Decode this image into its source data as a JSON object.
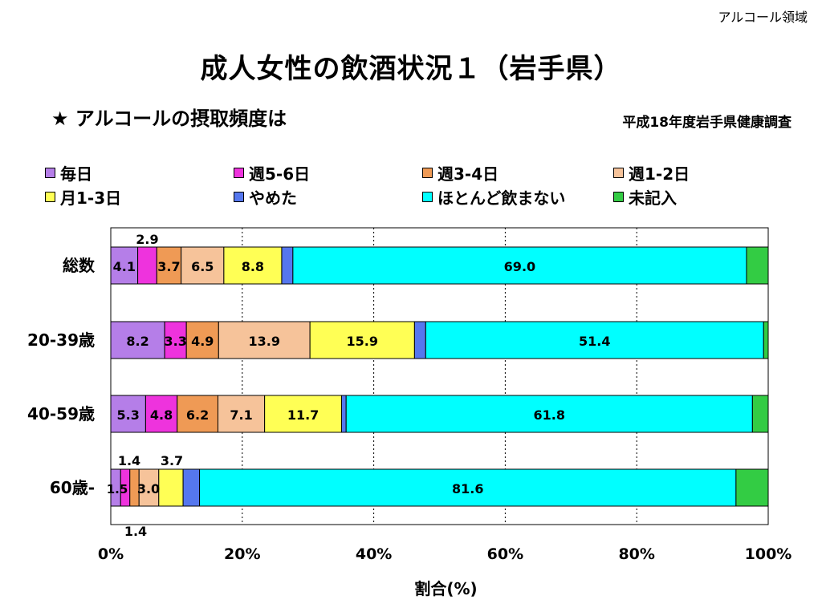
{
  "header": {
    "corner_label": "アルコール領域",
    "title": "成人女性の飲酒状況１（岩手県）",
    "subtitle": "★ アルコールの摂取頻度は",
    "source": "平成18年度岩手県健康調査"
  },
  "chart_data": {
    "type": "bar",
    "orientation": "horizontal",
    "stacked": true,
    "percent": true,
    "xlabel": "割合(%)",
    "xlim": [
      0,
      100
    ],
    "x_ticks": [
      "0%",
      "20%",
      "40%",
      "60%",
      "80%",
      "100%"
    ],
    "grid": "vertical dotted",
    "legend_position": "top",
    "categories": [
      "総数",
      "20-39歳",
      "40-59歳",
      "60歳-"
    ],
    "series": [
      {
        "name": "毎日",
        "color": "#b57ee8",
        "values": [
          4.1,
          8.2,
          5.3,
          1.5
        ],
        "labels": [
          "4.1",
          "8.2",
          "5.3",
          "1.5"
        ]
      },
      {
        "name": "週5-6日",
        "color": "#ee33dd",
        "values": [
          2.9,
          3.3,
          4.8,
          1.4
        ],
        "labels": [
          "2.9",
          "3.3",
          "4.8",
          "1.4"
        ]
      },
      {
        "name": "週3-4日",
        "color": "#ef9a55",
        "values": [
          3.7,
          4.9,
          6.2,
          1.4
        ],
        "labels": [
          "3.7",
          "4.9",
          "6.2",
          "1.4"
        ]
      },
      {
        "name": "週1-2日",
        "color": "#f6c39a",
        "values": [
          6.5,
          13.9,
          7.1,
          3.0
        ],
        "labels": [
          "6.5",
          "13.9",
          "7.1",
          "3.0"
        ]
      },
      {
        "name": "月1-3日",
        "color": "#ffff55",
        "values": [
          8.8,
          15.9,
          11.7,
          3.7
        ],
        "labels": [
          "8.8",
          "15.9",
          "11.7",
          "3.7"
        ]
      },
      {
        "name": "やめた",
        "color": "#5577ee",
        "values": [
          1.7,
          1.7,
          0.7,
          2.5
        ],
        "labels": [
          "",
          "",
          "",
          ""
        ]
      },
      {
        "name": "ほとんど飲まない",
        "color": "#00ffff",
        "values": [
          69.0,
          51.4,
          61.8,
          81.6
        ],
        "labels": [
          "69.0",
          "51.4",
          "61.8",
          "81.6"
        ]
      },
      {
        "name": "未記入",
        "color": "#33cc44",
        "values": [
          3.3,
          0.7,
          2.4,
          4.9
        ],
        "labels": [
          "",
          "",
          "",
          ""
        ]
      }
    ]
  }
}
